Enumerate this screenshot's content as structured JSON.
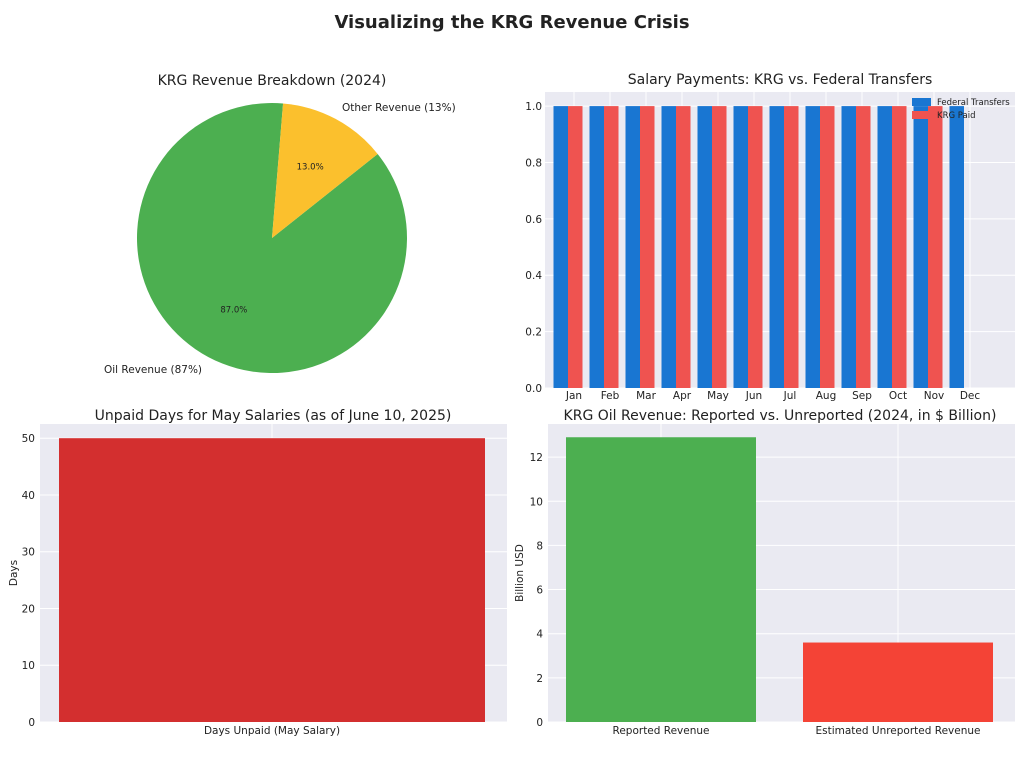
{
  "title": "Visualizing the KRG Revenue Crisis",
  "chart_data": [
    {
      "type": "pie",
      "title": "KRG Revenue Breakdown (2024)",
      "labels": [
        "Oil Revenue (87%)",
        "Other Revenue (13%)"
      ],
      "values": [
        87.0,
        13.0
      ],
      "pct_labels": [
        "87.0%",
        "13.0%"
      ],
      "colors": [
        "#4caf50",
        "#fbc02d"
      ]
    },
    {
      "type": "bar",
      "title": "Salary Payments: KRG vs. Federal Transfers",
      "categories": [
        "Jan",
        "Feb",
        "Mar",
        "Apr",
        "May",
        "Jun",
        "Jul",
        "Aug",
        "Sep",
        "Oct",
        "Nov",
        "Dec"
      ],
      "series": [
        {
          "name": "Federal Transfers",
          "values": [
            1,
            1,
            1,
            1,
            1,
            1,
            1,
            1,
            1,
            1,
            1,
            1
          ],
          "color": "#1976d2"
        },
        {
          "name": "KRG Paid",
          "values": [
            1,
            1,
            1,
            1,
            1,
            1,
            1,
            1,
            1,
            1,
            1,
            0
          ],
          "color": "#ef5350"
        }
      ],
      "yticks": [
        "0.0",
        "0.2",
        "0.4",
        "0.6",
        "0.8",
        "1.0"
      ],
      "ylim": [
        0,
        1.05
      ],
      "legend": "top-right",
      "grid": true
    },
    {
      "type": "bar",
      "title": "Unpaid Days for May Salaries (as of June 10, 2025)",
      "categories": [
        "Days Unpaid (May Salary)"
      ],
      "values": [
        50
      ],
      "colors": [
        "#d32f2f"
      ],
      "ylabel": "Days",
      "yticks": [
        "0",
        "10",
        "20",
        "30",
        "40",
        "50"
      ],
      "ylim": [
        0,
        52.5
      ],
      "grid": true
    },
    {
      "type": "bar",
      "title": "KRG Oil Revenue: Reported vs. Unreported (2024, in $ Billion)",
      "categories": [
        "Reported Revenue",
        "Estimated Unreported Revenue"
      ],
      "values": [
        12.9,
        3.6
      ],
      "colors": [
        "#4caf50",
        "#f44336"
      ],
      "ylabel": "Billion USD",
      "yticks": [
        "0",
        "2",
        "4",
        "6",
        "8",
        "10",
        "12"
      ],
      "ylim": [
        0,
        13.5
      ],
      "grid": true
    }
  ]
}
